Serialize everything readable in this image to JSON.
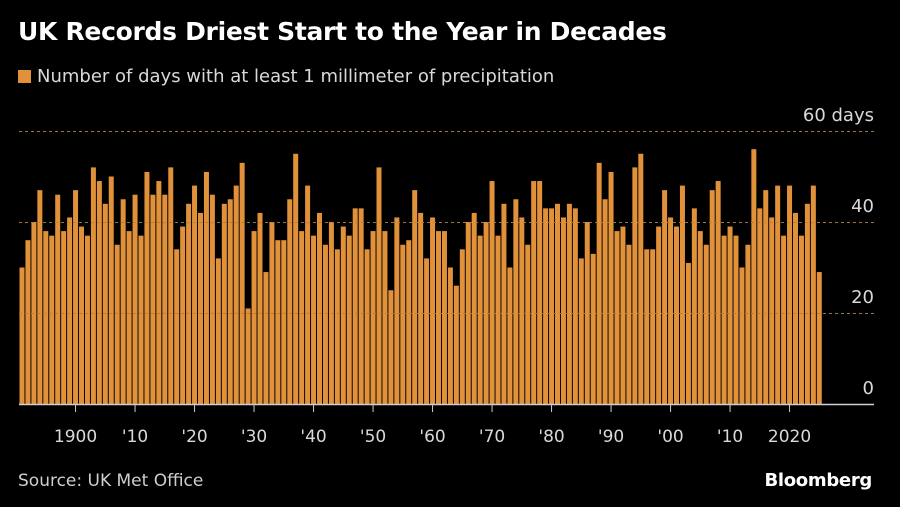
{
  "header": {
    "title": "UK Records Driest Start to the Year in Decades"
  },
  "legend": {
    "label": "Number of days with at least 1 millimeter of precipitation",
    "color": "#E0913A"
  },
  "footer": {
    "source": "Source: UK Met Office",
    "brand": "Bloomberg"
  },
  "colors": {
    "bar": "#E0913A",
    "bar_gap": "#2a0f05",
    "grid": "#8a8a8a",
    "axis": "#cfcfcf",
    "text": "#d9d9d9"
  },
  "chart_data": {
    "type": "bar",
    "title": "UK Records Driest Start to the Year in Decades",
    "xlabel": "",
    "ylabel": "",
    "ylim": [
      0,
      60
    ],
    "y_ticks": [
      0,
      20,
      40,
      60
    ],
    "y_tick_labels": [
      "0",
      "20",
      "40",
      "60 days"
    ],
    "x_ticks": [
      1900,
      1910,
      1920,
      1930,
      1940,
      1950,
      1960,
      1970,
      1980,
      1990,
      2000,
      2010,
      2020
    ],
    "x_tick_labels": [
      "1900",
      "'10",
      "'20",
      "'30",
      "'40",
      "'50",
      "'60",
      "'70",
      "'80",
      "'90",
      "'00",
      "'10",
      "2020"
    ],
    "grid": true,
    "legend_position": "top-left",
    "series": [
      {
        "name": "Number of days with at least 1 millimeter of precipitation",
        "start_year": 1891,
        "end_year": 2025,
        "values": [
          30,
          36,
          40,
          47,
          38,
          37,
          46,
          38,
          41,
          47,
          39,
          37,
          52,
          49,
          44,
          50,
          35,
          45,
          38,
          46,
          37,
          51,
          46,
          49,
          46,
          52,
          34,
          39,
          44,
          48,
          42,
          51,
          46,
          32,
          44,
          45,
          48,
          53,
          21,
          38,
          42,
          29,
          40,
          36,
          36,
          45,
          55,
          38,
          48,
          37,
          42,
          35,
          40,
          34,
          39,
          37,
          43,
          43,
          34,
          38,
          52,
          38,
          25,
          41,
          35,
          36,
          47,
          42,
          32,
          41,
          38,
          38,
          30,
          26,
          34,
          40,
          42,
          37,
          40,
          49,
          37,
          44,
          30,
          45,
          41,
          35,
          49,
          49,
          43,
          43,
          44,
          41,
          44,
          43,
          32,
          40,
          33,
          53,
          45,
          51,
          38,
          39,
          35,
          52,
          55,
          34,
          34,
          39,
          47,
          41,
          39,
          48,
          31,
          43,
          38,
          35,
          47,
          49,
          37,
          39,
          37,
          30,
          35,
          56,
          43,
          47,
          41,
          48,
          37,
          48,
          42,
          37,
          44,
          48,
          29
        ]
      }
    ]
  }
}
